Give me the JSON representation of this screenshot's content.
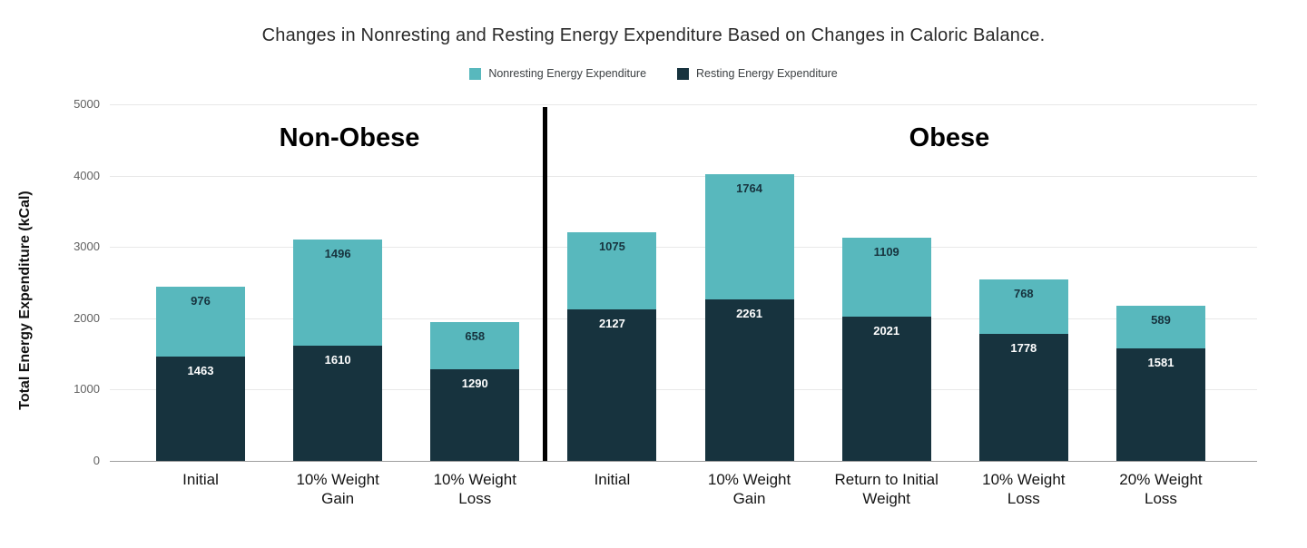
{
  "title": "Changes in Nonresting and Resting Energy Expenditure Based on Changes in Caloric Balance.",
  "legend": [
    {
      "label": "Nonresting Energy Expenditure",
      "color": "#58b8bd"
    },
    {
      "label": "Resting Energy Expenditure",
      "color": "#17333e"
    }
  ],
  "group_labels": [
    "Non-Obese",
    "Obese"
  ],
  "chart_data": {
    "type": "bar",
    "stacked": true,
    "title": "Changes in Nonresting and Resting Energy Expenditure Based on Changes in Caloric Balance.",
    "xlabel": "",
    "ylabel": "Total Energy Expenditure (kCal)",
    "ylim": [
      0,
      5000
    ],
    "yticks": [
      0,
      1000,
      2000,
      3000,
      4000,
      5000
    ],
    "grid": true,
    "legend_position": "top",
    "categories": [
      "Initial",
      "10% Weight Gain",
      "10% Weight Loss",
      "Initial",
      "10% Weight Gain",
      "Return to Initial Weight",
      "10% Weight Loss",
      "20% Weight Loss"
    ],
    "category_groups": [
      "Non-Obese",
      "Non-Obese",
      "Non-Obese",
      "Obese",
      "Obese",
      "Obese",
      "Obese",
      "Obese"
    ],
    "series": [
      {
        "name": "Nonresting Energy Expenditure",
        "color": "#58b8bd",
        "label_color": "#17333e",
        "values": [
          976,
          1496,
          658,
          1075,
          1764,
          1109,
          768,
          589
        ]
      },
      {
        "name": "Resting Energy Expenditure",
        "color": "#17333e",
        "label_color": "#ffffff",
        "values": [
          1463,
          1610,
          1290,
          2127,
          2261,
          2021,
          1778,
          1581
        ]
      }
    ],
    "group_divider_after_category_index": 2,
    "totals": [
      2439,
      3106,
      1948,
      3202,
      4025,
      3130,
      2546,
      2170
    ]
  }
}
